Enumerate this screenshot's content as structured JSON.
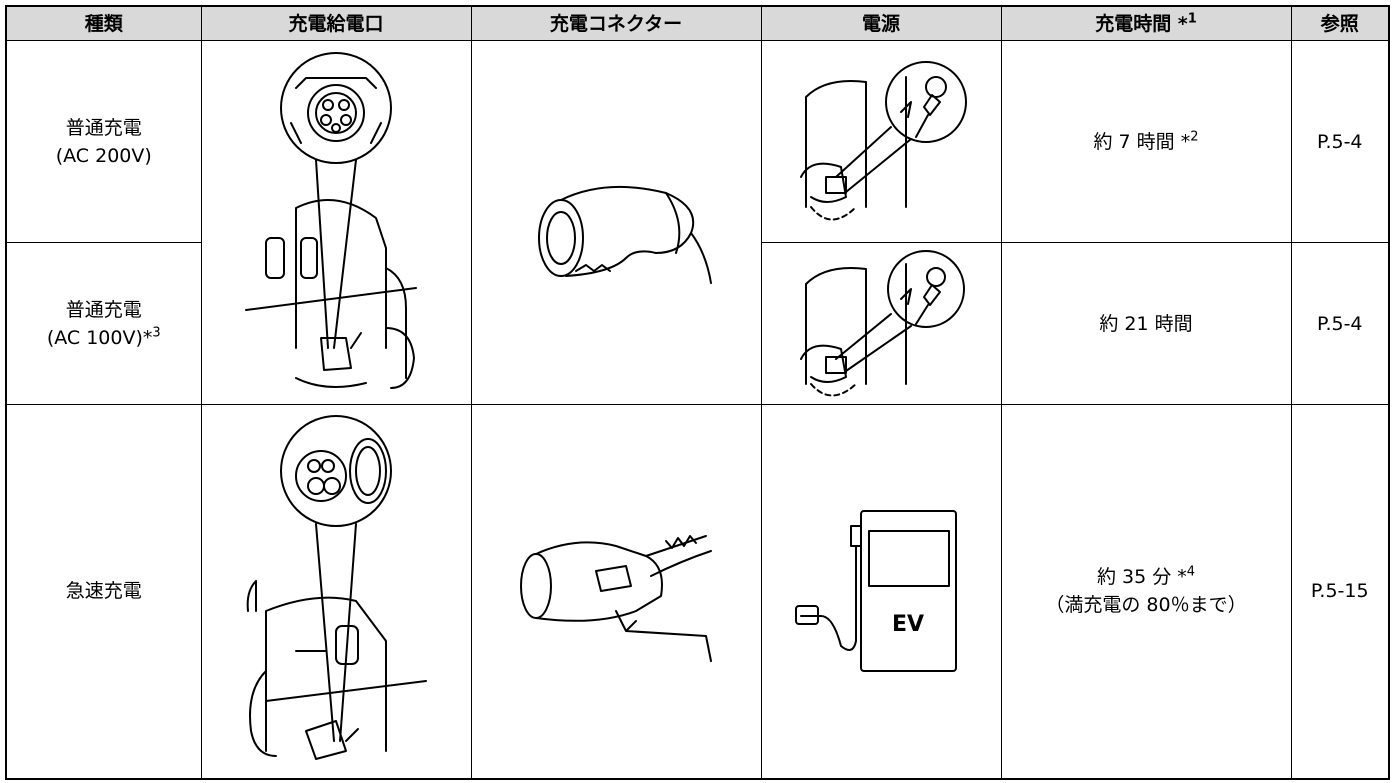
{
  "table": {
    "headers": [
      {
        "text": "種類"
      },
      {
        "text": "充電給電口"
      },
      {
        "text": "充電コネクター"
      },
      {
        "text": "電源"
      },
      {
        "text": "充電時間 *",
        "sup": "1"
      },
      {
        "text": "参照"
      }
    ],
    "rows": [
      {
        "type_lines": [
          "普通充電",
          "(AC 200V)"
        ],
        "time": "約 7 時間 *",
        "time_sup": "2",
        "ref": "P.5-4"
      },
      {
        "type_lines": [
          "普通充電",
          "(AC 100V)*"
        ],
        "type_sup": "3",
        "time": "約 21 時間",
        "ref": "P.5-4"
      },
      {
        "type_lines": [
          "急速充電"
        ],
        "time": "約 35 分 *",
        "time_sup": "4",
        "time_note": "（満充電の 80％まで）",
        "ref": "P.5-15"
      }
    ],
    "charger_label": "EV"
  }
}
